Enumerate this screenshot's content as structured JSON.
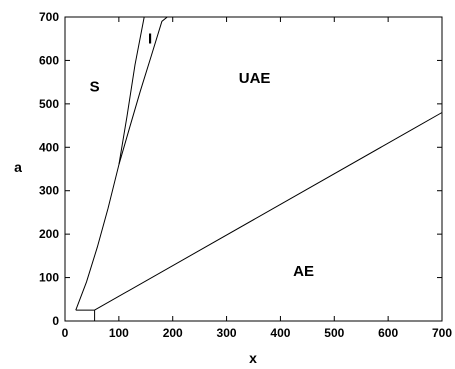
{
  "chart_data": {
    "type": "line",
    "title": "",
    "xlabel": "x",
    "ylabel": "a",
    "xlim": [
      0,
      700
    ],
    "ylim": [
      0,
      700
    ],
    "xticks": [
      0,
      100,
      200,
      300,
      400,
      500,
      600,
      700
    ],
    "yticks": [
      0,
      100,
      200,
      300,
      400,
      500,
      600,
      700
    ],
    "grid": false,
    "series": [
      {
        "x": [
          20,
          40,
          60,
          80,
          100,
          115,
          130,
          147
        ],
        "y": [
          25,
          90,
          170,
          260,
          360,
          470,
          590,
          700
        ]
      },
      {
        "x": [
          100,
          120,
          140,
          160,
          180,
          190
        ],
        "y": [
          360,
          445,
          530,
          610,
          690,
          700
        ]
      },
      {
        "x": [
          55,
          700
        ],
        "y": [
          25,
          480
        ]
      },
      {
        "x": [
          20,
          55
        ],
        "y": [
          25,
          25
        ]
      },
      {
        "x": [
          55,
          55
        ],
        "y": [
          0,
          25
        ]
      }
    ],
    "annotations": [
      {
        "text": "S",
        "x": 55,
        "y": 540
      },
      {
        "text": "I",
        "x": 158,
        "y": 650
      },
      {
        "text": "UAE",
        "x": 352,
        "y": 560
      },
      {
        "text": "AE",
        "x": 443,
        "y": 115
      }
    ]
  }
}
